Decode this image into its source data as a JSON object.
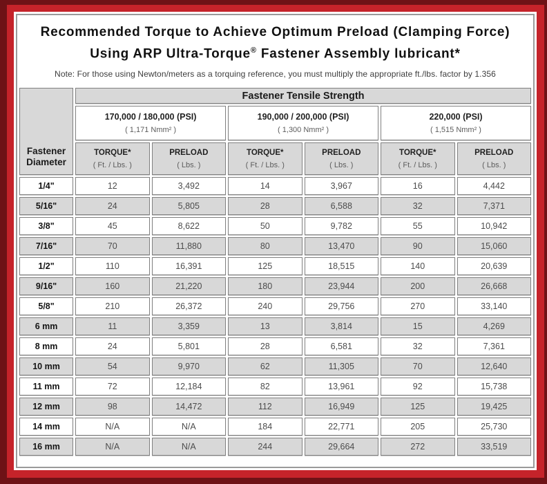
{
  "colors": {
    "outer_border": "#6e1216",
    "frame_red": "#c5232a",
    "shaded_row": "#d8d8d8",
    "cell_border": "#7f7f7f"
  },
  "title": {
    "line1": "Recommended Torque to Achieve Optimum Preload (Clamping Force)",
    "line2_pre": "Using ARP Ultra-Torque",
    "line2_reg": "®",
    "line2_post": " Fastener Assembly lubricant*"
  },
  "note": "Note: For those using Newton/meters as a torquing reference, you must multiply the appropriate ft./lbs. factor by 1.356",
  "table": {
    "tensile_header": "Fastener Tensile Strength",
    "diameter_header": "Fastener Diameter",
    "psi_columns": [
      {
        "main": "170,000 / 180,000 (PSI)",
        "sub": "( 1,171 Nmm² )"
      },
      {
        "main": "190,000 / 200,000 (PSI)",
        "sub": "( 1,300 Nmm² )"
      },
      {
        "main": "220,000 (PSI)",
        "sub": "( 1,515 Nmm² )"
      }
    ],
    "measure_headers": [
      {
        "main": "TORQUE*",
        "sub": "( Ft. / Lbs. )"
      },
      {
        "main": "PRELOAD",
        "sub": "( Lbs. )"
      }
    ],
    "rows": [
      {
        "dia": "1/4\"",
        "values": [
          "12",
          "3,492",
          "14",
          "3,967",
          "16",
          "4,442"
        ]
      },
      {
        "dia": "5/16\"",
        "values": [
          "24",
          "5,805",
          "28",
          "6,588",
          "32",
          "7,371"
        ]
      },
      {
        "dia": "3/8\"",
        "values": [
          "45",
          "8,622",
          "50",
          "9,782",
          "55",
          "10,942"
        ]
      },
      {
        "dia": "7/16\"",
        "values": [
          "70",
          "11,880",
          "80",
          "13,470",
          "90",
          "15,060"
        ]
      },
      {
        "dia": "1/2\"",
        "values": [
          "110",
          "16,391",
          "125",
          "18,515",
          "140",
          "20,639"
        ]
      },
      {
        "dia": "9/16\"",
        "values": [
          "160",
          "21,220",
          "180",
          "23,944",
          "200",
          "26,668"
        ]
      },
      {
        "dia": "5/8\"",
        "values": [
          "210",
          "26,372",
          "240",
          "29,756",
          "270",
          "33,140"
        ]
      },
      {
        "dia": "6 mm",
        "values": [
          "11",
          "3,359",
          "13",
          "3,814",
          "15",
          "4,269"
        ]
      },
      {
        "dia": "8 mm",
        "values": [
          "24",
          "5,801",
          "28",
          "6,581",
          "32",
          "7,361"
        ]
      },
      {
        "dia": "10 mm",
        "values": [
          "54",
          "9,970",
          "62",
          "11,305",
          "70",
          "12,640"
        ]
      },
      {
        "dia": "11 mm",
        "values": [
          "72",
          "12,184",
          "82",
          "13,961",
          "92",
          "15,738"
        ]
      },
      {
        "dia": "12 mm",
        "values": [
          "98",
          "14,472",
          "112",
          "16,949",
          "125",
          "19,425"
        ]
      },
      {
        "dia": "14 mm",
        "values": [
          "N/A",
          "N/A",
          "184",
          "22,771",
          "205",
          "25,730"
        ]
      },
      {
        "dia": "16 mm",
        "values": [
          "N/A",
          "N/A",
          "244",
          "29,664",
          "272",
          "33,519"
        ]
      }
    ]
  }
}
